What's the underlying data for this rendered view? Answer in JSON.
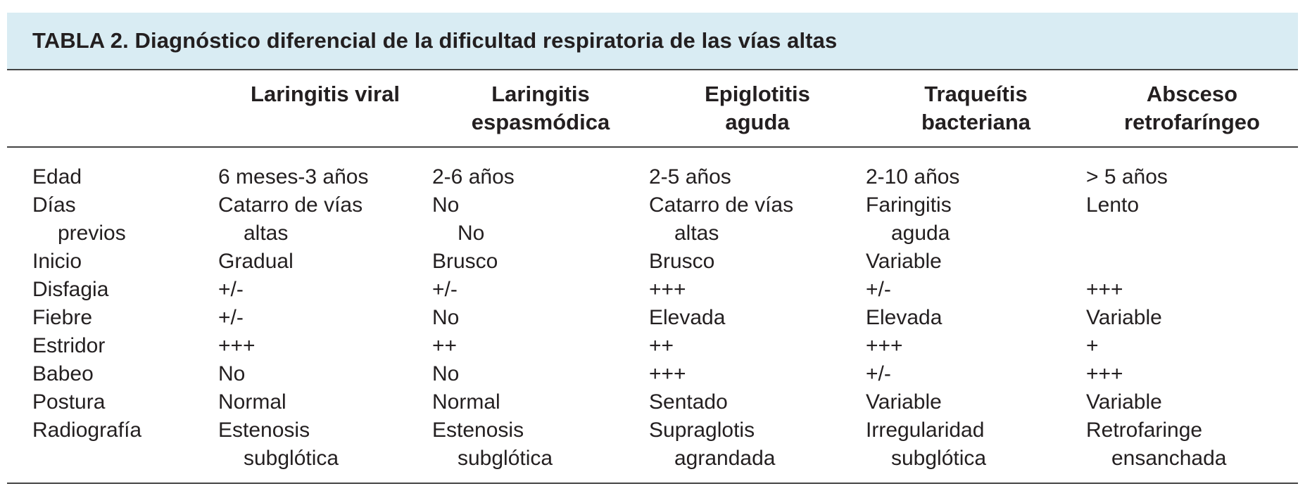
{
  "title": "TABLA 2. Diagnóstico diferencial de la dificultad respiratoria de las vías altas",
  "columns": [
    {
      "line1": "",
      "line2": ""
    },
    {
      "line1": "Laringitis viral",
      "line2": ""
    },
    {
      "line1": "Laringitis",
      "line2": "espasmódica"
    },
    {
      "line1": "Epiglotitis",
      "line2": "aguda"
    },
    {
      "line1": "Traqueítis",
      "line2": "bacteriana"
    },
    {
      "line1": "Absceso",
      "line2": "retrofaríngeo"
    }
  ],
  "rows": [
    {
      "cells": [
        {
          "l1": "Edad",
          "l2": ""
        },
        {
          "l1": "6 meses-3 años",
          "l2": ""
        },
        {
          "l1": "2-6 años",
          "l2": ""
        },
        {
          "l1": "2-5 años",
          "l2": ""
        },
        {
          "l1": "2-10 años",
          "l2": ""
        },
        {
          "l1": "> 5 años",
          "l2": ""
        }
      ]
    },
    {
      "cells": [
        {
          "l1": "Días",
          "l2": "previos"
        },
        {
          "l1": "Catarro de vías",
          "l2": "altas"
        },
        {
          "l1": "No",
          "l2": "No"
        },
        {
          "l1": "Catarro de vías",
          "l2": "altas"
        },
        {
          "l1": "Faringitis",
          "l2": "aguda"
        },
        {
          "l1": "Lento",
          "l2": ""
        }
      ]
    },
    {
      "cells": [
        {
          "l1": "Inicio",
          "l2": ""
        },
        {
          "l1": "Gradual",
          "l2": ""
        },
        {
          "l1": "Brusco",
          "l2": ""
        },
        {
          "l1": "Brusco",
          "l2": ""
        },
        {
          "l1": "Variable",
          "l2": ""
        },
        {
          "l1": "",
          "l2": ""
        }
      ]
    },
    {
      "cells": [
        {
          "l1": "Disfagia",
          "l2": ""
        },
        {
          "l1": "+/-",
          "l2": ""
        },
        {
          "l1": "+/-",
          "l2": ""
        },
        {
          "l1": "+++",
          "l2": ""
        },
        {
          "l1": "+/-",
          "l2": ""
        },
        {
          "l1": "+++",
          "l2": ""
        }
      ]
    },
    {
      "cells": [
        {
          "l1": "Fiebre",
          "l2": ""
        },
        {
          "l1": "+/-",
          "l2": ""
        },
        {
          "l1": "No",
          "l2": ""
        },
        {
          "l1": "Elevada",
          "l2": ""
        },
        {
          "l1": "Elevada",
          "l2": ""
        },
        {
          "l1": "Variable",
          "l2": ""
        }
      ]
    },
    {
      "cells": [
        {
          "l1": "Estridor",
          "l2": ""
        },
        {
          "l1": "+++",
          "l2": ""
        },
        {
          "l1": "++",
          "l2": ""
        },
        {
          "l1": "++",
          "l2": ""
        },
        {
          "l1": "+++",
          "l2": ""
        },
        {
          "l1": "+",
          "l2": ""
        }
      ]
    },
    {
      "cells": [
        {
          "l1": "Babeo",
          "l2": ""
        },
        {
          "l1": "No",
          "l2": ""
        },
        {
          "l1": "No",
          "l2": ""
        },
        {
          "l1": "+++",
          "l2": ""
        },
        {
          "l1": "+/-",
          "l2": ""
        },
        {
          "l1": "+++",
          "l2": ""
        }
      ]
    },
    {
      "cells": [
        {
          "l1": "Postura",
          "l2": ""
        },
        {
          "l1": "Normal",
          "l2": ""
        },
        {
          "l1": "Normal",
          "l2": ""
        },
        {
          "l1": "Sentado",
          "l2": ""
        },
        {
          "l1": "Variable",
          "l2": ""
        },
        {
          "l1": "Variable",
          "l2": ""
        }
      ]
    },
    {
      "cells": [
        {
          "l1": "Radiografía",
          "l2": ""
        },
        {
          "l1": "Estenosis",
          "l2": "subglótica"
        },
        {
          "l1": "Estenosis",
          "l2": "subglótica"
        },
        {
          "l1": "Supraglotis",
          "l2": "agrandada"
        },
        {
          "l1": "Irregularidad",
          "l2": "subglótica"
        },
        {
          "l1": "Retrofaringe",
          "l2": "ensanchada"
        }
      ]
    }
  ]
}
